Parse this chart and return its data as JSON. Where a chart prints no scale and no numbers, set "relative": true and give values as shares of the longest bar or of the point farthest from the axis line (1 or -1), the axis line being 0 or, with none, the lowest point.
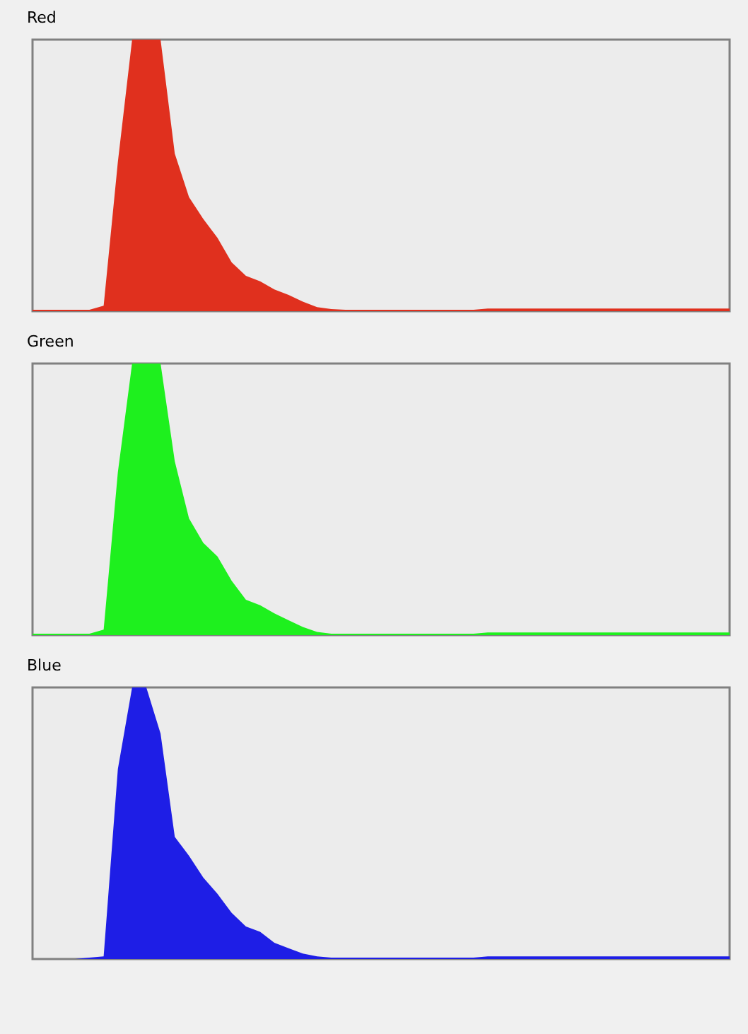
{
  "chart_data": [
    {
      "type": "area",
      "title": "Red",
      "relative": true,
      "categories": [
        null,
        null,
        null,
        null,
        null,
        null,
        null,
        null,
        null,
        null,
        null,
        null,
        null,
        null,
        null,
        null,
        null,
        null,
        null,
        null,
        null,
        null,
        null,
        null,
        null,
        null,
        null,
        null,
        null,
        null,
        null,
        null,
        null,
        null,
        null,
        null,
        null,
        null,
        null,
        null,
        null,
        null,
        null,
        null,
        null,
        null,
        null,
        null,
        null,
        null
      ],
      "series": [
        {
          "color": "#e0301e",
          "values": [
            0.005,
            0.005,
            0.005,
            0.005,
            0.005,
            0.02,
            0.55,
            1,
            1,
            1,
            0.58,
            0.42,
            0.34,
            0.27,
            0.18,
            0.13,
            0.11,
            0.08,
            0.06,
            0.035,
            0.015,
            0.008,
            0.005,
            0.005,
            0.005,
            0.005,
            0.005,
            0.005,
            0.005,
            0.005,
            0.005,
            0.005,
            0.01,
            0.01,
            0.01,
            0.01,
            0.01,
            0.01,
            0.01,
            0.01,
            0.01,
            0.01,
            0.01,
            0.01,
            0.01,
            0.01,
            0.01,
            0.01,
            0.01,
            0.01
          ]
        }
      ]
    },
    {
      "type": "area",
      "title": "Green",
      "relative": true,
      "categories": [
        null,
        null,
        null,
        null,
        null,
        null,
        null,
        null,
        null,
        null,
        null,
        null,
        null,
        null,
        null,
        null,
        null,
        null,
        null,
        null,
        null,
        null,
        null,
        null,
        null,
        null,
        null,
        null,
        null,
        null,
        null,
        null,
        null,
        null,
        null,
        null,
        null,
        null,
        null,
        null,
        null,
        null,
        null,
        null,
        null,
        null,
        null,
        null,
        null,
        null
      ],
      "series": [
        {
          "color": "#1ef01e",
          "values": [
            0.005,
            0.005,
            0.005,
            0.005,
            0.005,
            0.02,
            0.6,
            1,
            1,
            1,
            0.64,
            0.43,
            0.34,
            0.29,
            0.2,
            0.13,
            0.11,
            0.08,
            0.055,
            0.03,
            0.012,
            0.005,
            0.005,
            0.005,
            0.005,
            0.005,
            0.005,
            0.005,
            0.005,
            0.005,
            0.005,
            0.005,
            0.01,
            0.01,
            0.01,
            0.01,
            0.01,
            0.01,
            0.01,
            0.01,
            0.01,
            0.01,
            0.01,
            0.01,
            0.01,
            0.01,
            0.01,
            0.01,
            0.01,
            0.01
          ]
        }
      ]
    },
    {
      "type": "area",
      "title": "Blue",
      "relative": true,
      "categories": [
        null,
        null,
        null,
        null,
        null,
        null,
        null,
        null,
        null,
        null,
        null,
        null,
        null,
        null,
        null,
        null,
        null,
        null,
        null,
        null,
        null,
        null,
        null,
        null,
        null,
        null,
        null,
        null,
        null,
        null,
        null,
        null,
        null,
        null,
        null,
        null,
        null,
        null,
        null,
        null,
        null,
        null,
        null,
        null,
        null,
        null,
        null,
        null,
        null,
        null
      ],
      "series": [
        {
          "color": "#1e1ee6",
          "values": [
            0,
            0,
            0,
            0,
            0.005,
            0.01,
            0.7,
            1,
            1,
            0.83,
            0.45,
            0.38,
            0.3,
            0.24,
            0.17,
            0.12,
            0.1,
            0.06,
            0.04,
            0.02,
            0.01,
            0.005,
            0.005,
            0.005,
            0.005,
            0.005,
            0.005,
            0.005,
            0.005,
            0.005,
            0.005,
            0.005,
            0.01,
            0.01,
            0.01,
            0.01,
            0.01,
            0.01,
            0.01,
            0.01,
            0.01,
            0.01,
            0.01,
            0.01,
            0.01,
            0.01,
            0.01,
            0.01,
            0.01,
            0.01
          ]
        }
      ]
    }
  ]
}
